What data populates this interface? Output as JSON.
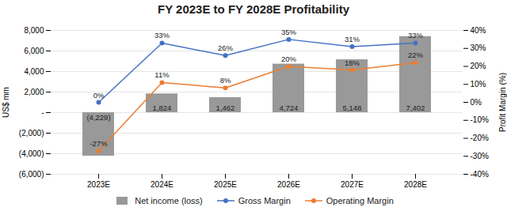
{
  "chart_data": {
    "type": "bar",
    "title": "FY 2023E to FY 2028E Profitability",
    "categories": [
      "2023E",
      "2024E",
      "2025E",
      "2026E",
      "2027E",
      "2028E"
    ],
    "ylabel": "US$ mm",
    "y2label": "Profit Margin (%)",
    "ylim": [
      -6000,
      8000
    ],
    "yticks": [
      {
        "value": -6000,
        "label": "(6,000)"
      },
      {
        "value": -4000,
        "label": "(4,000)"
      },
      {
        "value": -2000,
        "label": "(2,000)"
      },
      {
        "value": 0,
        "label": "-"
      },
      {
        "value": 2000,
        "label": "2,000"
      },
      {
        "value": 4000,
        "label": "4,000"
      },
      {
        "value": 6000,
        "label": "6,000"
      },
      {
        "value": 8000,
        "label": "8,000"
      }
    ],
    "y2lim": [
      -40,
      40
    ],
    "y2ticks": [
      {
        "value": -40,
        "label": "-40%"
      },
      {
        "value": -30,
        "label": "-30%"
      },
      {
        "value": -20,
        "label": "-20%"
      },
      {
        "value": -10,
        "label": "-10%"
      },
      {
        "value": 0,
        "label": "0%"
      },
      {
        "value": 10,
        "label": "10%"
      },
      {
        "value": 20,
        "label": "20%"
      },
      {
        "value": 30,
        "label": "30%"
      },
      {
        "value": 40,
        "label": "40%"
      }
    ],
    "grid": true,
    "legend": "bottom",
    "data_labels": true,
    "series": [
      {
        "name": "Net income (loss)",
        "type": "bar",
        "color": "#999999",
        "values": [
          -4229,
          1824,
          1462,
          4724,
          5148,
          7402
        ],
        "value_labels": [
          "(4,229)",
          "1,824",
          "1,462",
          "4,724",
          "5,148",
          "7,402"
        ]
      },
      {
        "name": "Gross Margin",
        "type": "line",
        "color": "#4472C4",
        "marker": "circle",
        "axis": "y2",
        "values": [
          0,
          33,
          26,
          35,
          31,
          33
        ],
        "value_labels": [
          "0%",
          "33%",
          "26%",
          "35%",
          "31%",
          "33%"
        ]
      },
      {
        "name": "Operating Margin",
        "type": "line",
        "color": "#ED7D31",
        "marker": "circle",
        "axis": "y2",
        "values": [
          -27,
          11,
          8,
          20,
          18,
          22
        ],
        "value_labels": [
          "-27%",
          "11%",
          "8%",
          "20%",
          "18%",
          "22%"
        ]
      }
    ]
  }
}
